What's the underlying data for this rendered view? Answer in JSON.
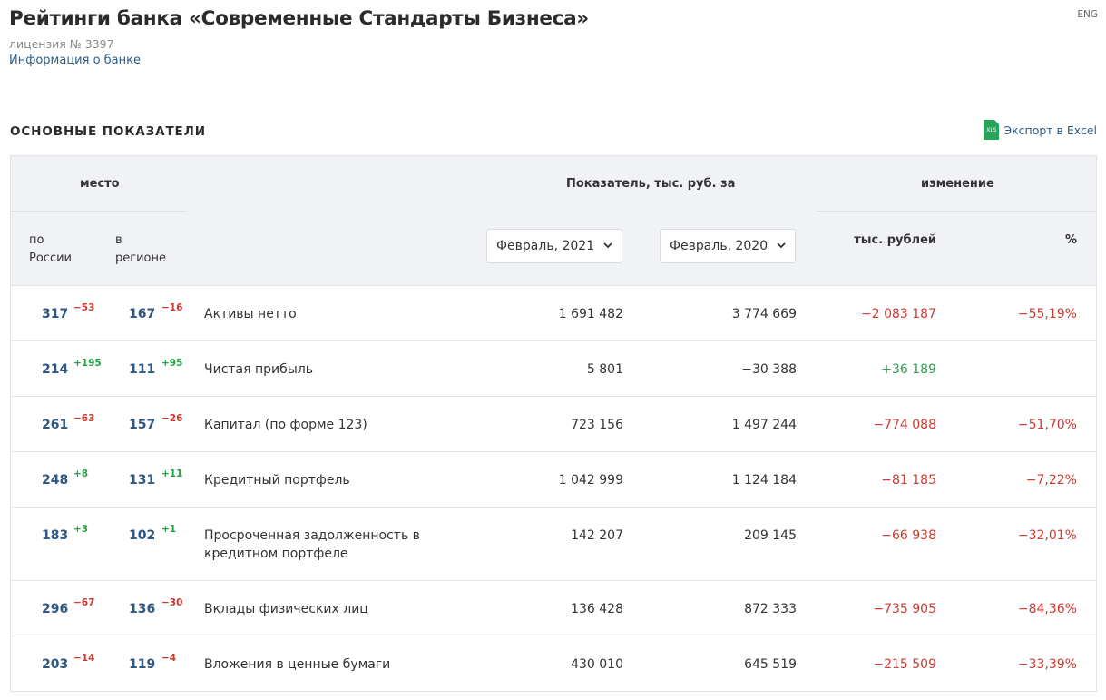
{
  "page": {
    "title": "Рейтинги банка «Современные Стандарты Бизнеса»",
    "license": "лицензия № 3397",
    "info_link": "Информация о банке",
    "lang": "ENG"
  },
  "section": {
    "title": "ОСНОВНЫЕ ПОКАЗАТЕЛИ",
    "export_label": "Экспорт в Excel",
    "export_icon_text": "XLS"
  },
  "table": {
    "header": {
      "place": "место",
      "indicator": "Показатель, тыс. руб. за",
      "change": "изменение",
      "russia": "по России",
      "region": "в регионе",
      "period1": "Февраль, 2021",
      "period2": "Февраль, 2020",
      "thousand_rub": "тыс. рублей",
      "percent": "%"
    },
    "rows": [
      {
        "rank_russia": "317",
        "delta_russia": "−53",
        "rank_region": "167",
        "delta_region": "−16",
        "name": "Активы нетто",
        "value1": "1 691 482",
        "value2": "3 774 669",
        "change_abs": "−2 083 187",
        "change_pct": "−55,19%"
      },
      {
        "rank_russia": "214",
        "delta_russia": "+195",
        "rank_region": "111",
        "delta_region": "+95",
        "name": "Чистая прибыль",
        "value1": "5 801",
        "value2": "−30 388",
        "change_abs": "+36 189",
        "change_pct": ""
      },
      {
        "rank_russia": "261",
        "delta_russia": "−63",
        "rank_region": "157",
        "delta_region": "−26",
        "name": "Капитал (по форме 123)",
        "value1": "723 156",
        "value2": "1 497 244",
        "change_abs": "−774 088",
        "change_pct": "−51,70%"
      },
      {
        "rank_russia": "248",
        "delta_russia": "+8",
        "rank_region": "131",
        "delta_region": "+11",
        "name": "Кредитный портфель",
        "value1": "1 042 999",
        "value2": "1 124 184",
        "change_abs": "−81 185",
        "change_pct": "−7,22%"
      },
      {
        "rank_russia": "183",
        "delta_russia": "+3",
        "rank_region": "102",
        "delta_region": "+1",
        "name": "Просроченная задолженность в кредитном портфеле",
        "value1": "142 207",
        "value2": "209 145",
        "change_abs": "−66 938",
        "change_pct": "−32,01%"
      },
      {
        "rank_russia": "296",
        "delta_russia": "−67",
        "rank_region": "136",
        "delta_region": "−30",
        "name": "Вклады физических лиц",
        "value1": "136 428",
        "value2": "872 333",
        "change_abs": "−735 905",
        "change_pct": "−84,36%"
      },
      {
        "rank_russia": "203",
        "delta_russia": "−14",
        "rank_region": "119",
        "delta_region": "−4",
        "name": "Вложения в ценные бумаги",
        "value1": "430 010",
        "value2": "645 519",
        "change_abs": "−215 509",
        "change_pct": "−33,39%"
      }
    ]
  },
  "colors": {
    "rank": "#2e5783",
    "positive": "#27a045",
    "negative": "#d1362b",
    "header_bg": "#f0f2f5",
    "excel_icon": "#27a35a"
  }
}
